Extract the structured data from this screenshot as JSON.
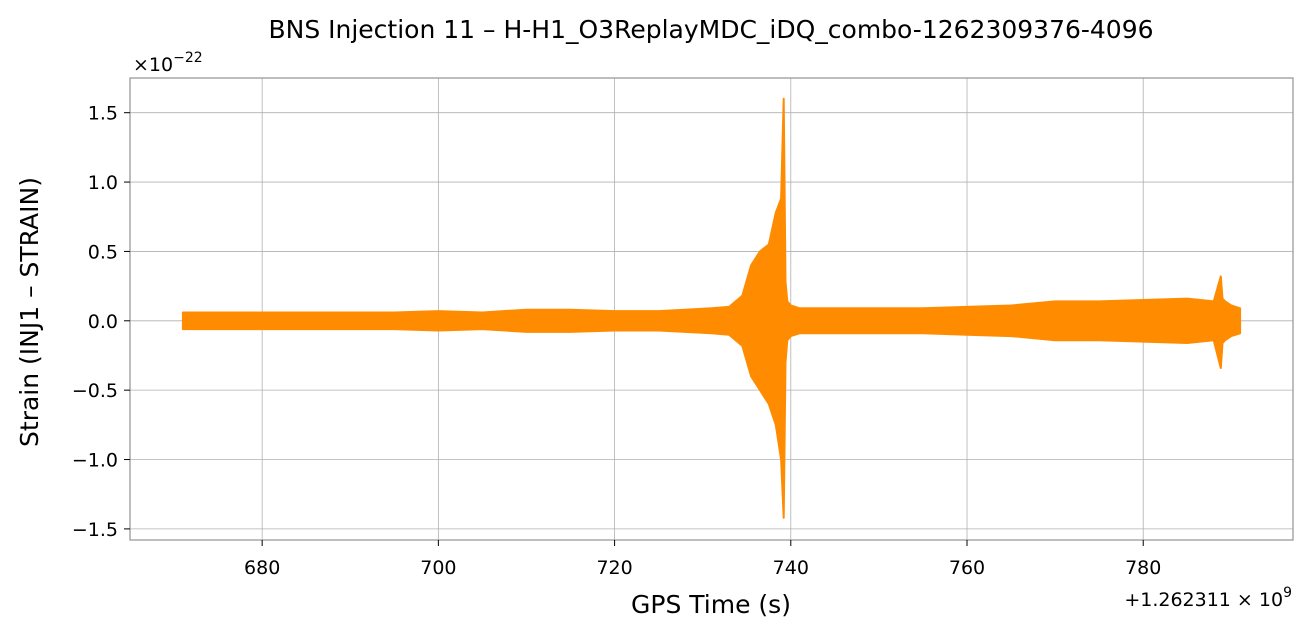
{
  "chart_data": {
    "type": "line",
    "title": "BNS Injection 11 – H-H1_O3ReplayMDC_iDQ_combo-1262309376-4096",
    "xlabel": "GPS Time (s)",
    "ylabel": "Strain (INJ1 – STRAIN)",
    "x_offset_label": "+1.262311 × 10",
    "x_offset_exponent": "9",
    "y_scale_label": "×10",
    "y_scale_exponent": "−22",
    "xlim": [
      665,
      797
    ],
    "ylim": [
      -1.58,
      1.75
    ],
    "xticks": [
      680,
      700,
      720,
      740,
      760,
      780
    ],
    "xtick_labels": [
      "680",
      "700",
      "720",
      "740",
      "760",
      "780"
    ],
    "yticks": [
      1.5,
      1.0,
      0.5,
      0.0,
      -0.5,
      -1.0,
      -1.5
    ],
    "ytick_labels": [
      "1.5",
      "1.0",
      "0.5",
      "0.0",
      "−0.5",
      "−1.0",
      "−1.5"
    ],
    "grid": true,
    "color": "#ff8c00",
    "series": [
      {
        "x": [
          671,
          675,
          680,
          685,
          690,
          695,
          700,
          705,
          710,
          715,
          720,
          725,
          728,
          731,
          733,
          734.5,
          735.5,
          736.5,
          737.5,
          738.3,
          738.9,
          739.2,
          739.4,
          739.6,
          740,
          741,
          745,
          750,
          755,
          760,
          765,
          770,
          775,
          780,
          785,
          788,
          788.8,
          789,
          789.3,
          790,
          791
        ],
        "upper": [
          0.06,
          0.06,
          0.06,
          0.06,
          0.06,
          0.06,
          0.07,
          0.06,
          0.08,
          0.08,
          0.07,
          0.07,
          0.08,
          0.09,
          0.1,
          0.18,
          0.4,
          0.5,
          0.55,
          0.78,
          0.88,
          1.6,
          0.28,
          0.14,
          0.11,
          0.09,
          0.09,
          0.09,
          0.09,
          0.1,
          0.11,
          0.14,
          0.14,
          0.15,
          0.16,
          0.14,
          0.32,
          0.16,
          0.14,
          0.11,
          0.09
        ],
        "lower": [
          -0.06,
          -0.06,
          -0.06,
          -0.06,
          -0.06,
          -0.06,
          -0.07,
          -0.06,
          -0.08,
          -0.08,
          -0.07,
          -0.07,
          -0.08,
          -0.09,
          -0.1,
          -0.18,
          -0.4,
          -0.5,
          -0.6,
          -0.75,
          -1.0,
          -1.42,
          -0.3,
          -0.14,
          -0.11,
          -0.09,
          -0.09,
          -0.09,
          -0.09,
          -0.1,
          -0.11,
          -0.14,
          -0.14,
          -0.15,
          -0.16,
          -0.14,
          -0.34,
          -0.16,
          -0.14,
          -0.11,
          -0.09
        ]
      }
    ]
  }
}
